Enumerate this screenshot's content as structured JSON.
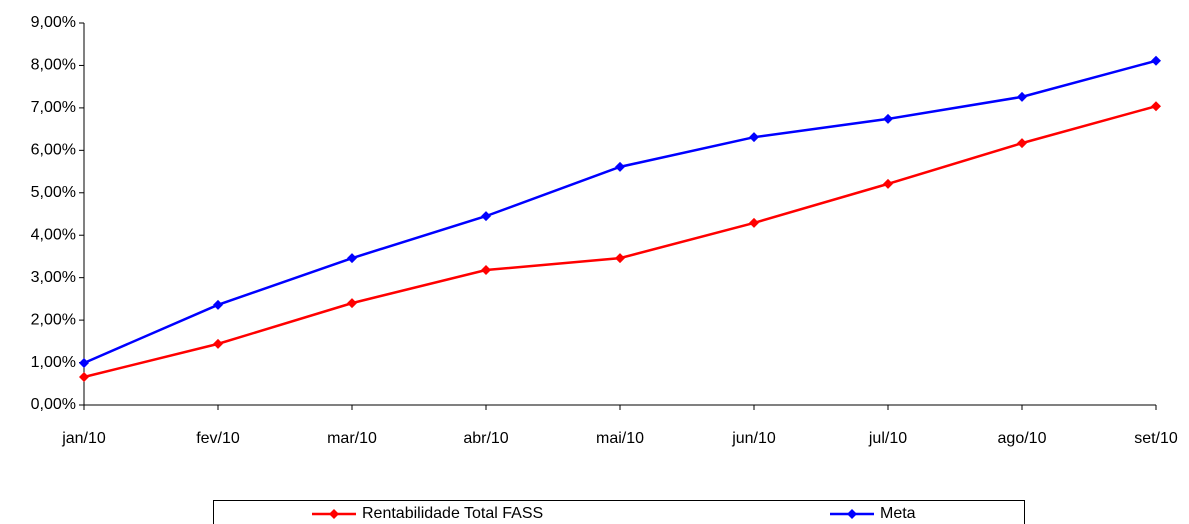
{
  "chart_data": {
    "type": "line",
    "categories": [
      "jan/10",
      "fev/10",
      "mar/10",
      "abr/10",
      "mai/10",
      "jun/10",
      "jul/10",
      "ago/10",
      "set/10"
    ],
    "series": [
      {
        "name": "Rentabilidade Total FASS",
        "color": "#ff0000",
        "values": [
          0.66,
          1.44,
          2.4,
          3.18,
          3.46,
          4.29,
          5.21,
          6.17,
          7.04
        ]
      },
      {
        "name": "Meta",
        "color": "#0000ff",
        "values": [
          0.99,
          2.36,
          3.46,
          4.45,
          5.61,
          6.31,
          6.74,
          7.26,
          8.11
        ]
      }
    ],
    "ylim": [
      0,
      9
    ],
    "yticks": [
      {
        "value": 0,
        "label": "0,00%"
      },
      {
        "value": 1,
        "label": "1,00%"
      },
      {
        "value": 2,
        "label": "2,00%"
      },
      {
        "value": 3,
        "label": "3,00%"
      },
      {
        "value": 4,
        "label": "4,00%"
      },
      {
        "value": 5,
        "label": "5,00%"
      },
      {
        "value": 6,
        "label": "6,00%"
      },
      {
        "value": 7,
        "label": "7,00%"
      },
      {
        "value": 8,
        "label": "8,00%"
      },
      {
        "value": 9,
        "label": "9,00%"
      }
    ],
    "grid": false
  }
}
